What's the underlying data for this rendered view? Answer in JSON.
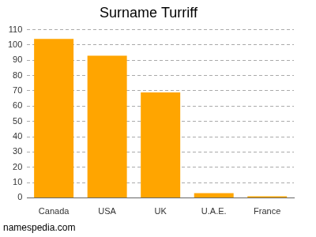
{
  "chart_data": {
    "type": "bar",
    "title": "Surname Turriff",
    "categories": [
      "Canada",
      "USA",
      "UK",
      "U.A.E.",
      "France"
    ],
    "values": [
      104,
      93,
      69,
      3,
      1
    ],
    "color": "#ffa500",
    "ylim": [
      0,
      110
    ],
    "yticks": [
      0,
      10,
      20,
      30,
      40,
      50,
      60,
      70,
      80,
      90,
      100,
      110
    ],
    "grid": true,
    "annotations": [
      "namespedia.com"
    ]
  }
}
